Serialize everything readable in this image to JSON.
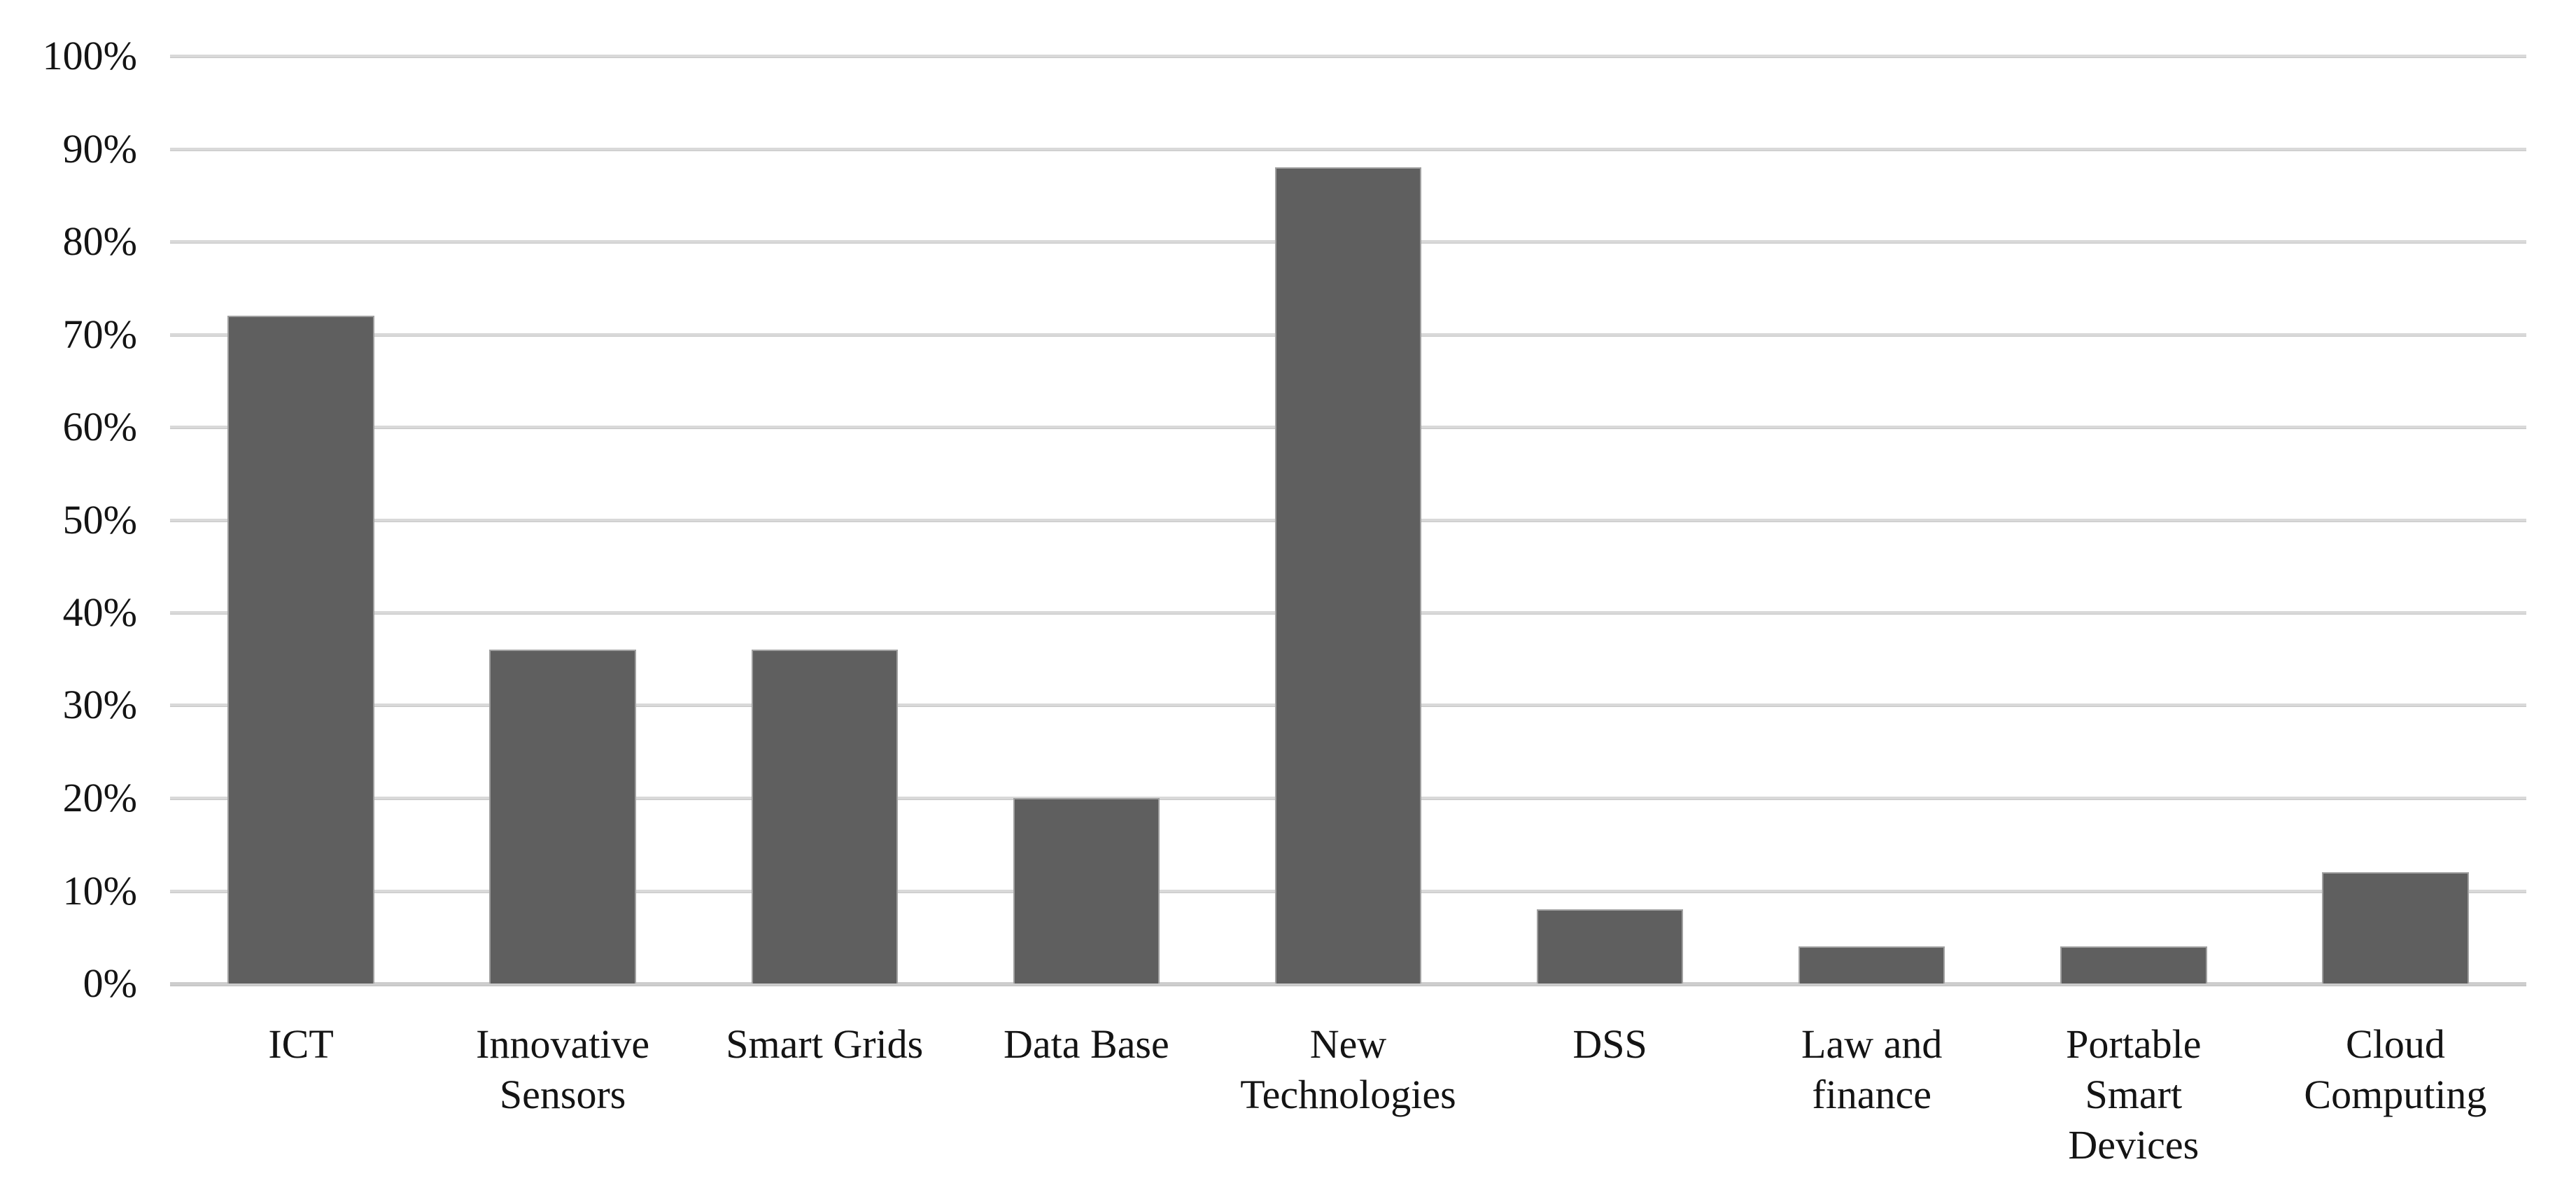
{
  "chart_data": {
    "type": "bar",
    "title": "",
    "xlabel": "",
    "ylabel": "",
    "categories": [
      "ICT",
      "Innovative Sensors",
      "Smart Grids",
      "Data Base",
      "New Technologies",
      "DSS",
      "Law and finance",
      "Portable Smart Devices",
      "Cloud Computing"
    ],
    "category_lines": [
      [
        "ICT"
      ],
      [
        "Innovative",
        "Sensors"
      ],
      [
        "Smart Grids"
      ],
      [
        "Data Base"
      ],
      [
        "New",
        "Technologies"
      ],
      [
        "DSS"
      ],
      [
        "Law and",
        "finance"
      ],
      [
        "Portable",
        "Smart",
        "Devices"
      ],
      [
        "Cloud",
        "Computing"
      ]
    ],
    "values": [
      72,
      36,
      36,
      20,
      88,
      8,
      4,
      4,
      12
    ],
    "unit": "%",
    "ylim": [
      0,
      100
    ],
    "ytick_step": 10,
    "ytick_labels": [
      "0%",
      "10%",
      "20%",
      "30%",
      "40%",
      "50%",
      "60%",
      "70%",
      "80%",
      "90%",
      "100%"
    ],
    "grid": true,
    "legend": false
  },
  "style": {
    "bar_fill": "#5f5f5f",
    "bar_border": "#a0a0a0",
    "gridline_color": "#d9d9d9",
    "zero_line_color": "#cdcdcd",
    "background": "#ffffff",
    "text_color": "#141414"
  }
}
